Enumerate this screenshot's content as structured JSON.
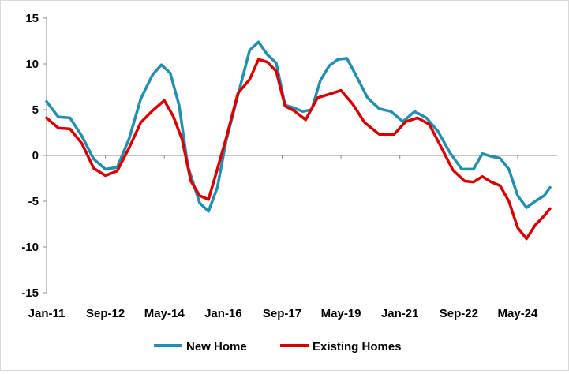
{
  "chart_data": {
    "type": "line",
    "title": "",
    "xlabel": "",
    "ylabel": "",
    "ylim": [
      -15,
      15
    ],
    "yticks": [
      15,
      10,
      5,
      0,
      -5,
      -10,
      -15
    ],
    "xticks": [
      "Jan-11",
      "Sep-12",
      "May-14",
      "Jan-16",
      "Sep-17",
      "May-19",
      "Jan-21",
      "Sep-22",
      "May-24"
    ],
    "grid": false,
    "legend_position": "bottom",
    "series": [
      {
        "name": "New Home",
        "color": "#1f8fb3",
        "points": [
          [
            "Jan-11",
            5.9
          ],
          [
            "May-11",
            4.2
          ],
          [
            "Sep-11",
            4.1
          ],
          [
            "Jan-12",
            2.1
          ],
          [
            "May-12",
            -0.4
          ],
          [
            "Sep-12",
            -1.5
          ],
          [
            "Jan-13",
            -1.3
          ],
          [
            "May-13",
            1.8
          ],
          [
            "Sep-13",
            6.2
          ],
          [
            "Jan-14",
            8.8
          ],
          [
            "Apr-14",
            9.9
          ],
          [
            "Jul-14",
            9.0
          ],
          [
            "Oct-14",
            5.5
          ],
          [
            "Jan-15",
            -1.2
          ],
          [
            "May-15",
            -5.2
          ],
          [
            "Aug-15",
            -6.1
          ],
          [
            "Nov-15",
            -3.5
          ],
          [
            "Feb-16",
            1.6
          ],
          [
            "Jun-16",
            6.6
          ],
          [
            "Oct-16",
            11.5
          ],
          [
            "Jan-17",
            12.4
          ],
          [
            "Apr-17",
            11.0
          ],
          [
            "Jul-17",
            10.1
          ],
          [
            "Oct-17",
            5.5
          ],
          [
            "Jan-18",
            5.2
          ],
          [
            "Apr-18",
            4.8
          ],
          [
            "Jul-18",
            5.0
          ],
          [
            "Oct-18",
            8.2
          ],
          [
            "Jan-19",
            9.8
          ],
          [
            "Apr-19",
            10.5
          ],
          [
            "Jul-19",
            10.6
          ],
          [
            "Oct-19",
            8.8
          ],
          [
            "Feb-20",
            6.3
          ],
          [
            "Jun-20",
            5.1
          ],
          [
            "Oct-20",
            4.8
          ],
          [
            "Feb-21",
            3.7
          ],
          [
            "Jun-21",
            4.8
          ],
          [
            "Oct-21",
            4.1
          ],
          [
            "Feb-22",
            2.6
          ],
          [
            "Jun-22",
            0.3
          ],
          [
            "Oct-22",
            -1.5
          ],
          [
            "Feb-23",
            -1.5
          ],
          [
            "May-23",
            0.2
          ],
          [
            "Aug-23",
            -0.1
          ],
          [
            "Nov-23",
            -0.3
          ],
          [
            "Feb-24",
            -1.5
          ],
          [
            "May-24",
            -4.4
          ],
          [
            "Aug-24",
            -5.7
          ],
          [
            "Nov-24",
            -5.0
          ],
          [
            "Feb-25",
            -4.4
          ],
          [
            "Apr-25",
            -3.5
          ]
        ]
      },
      {
        "name": "Existing Homes",
        "color": "#e00000",
        "points": [
          [
            "Jan-11",
            4.1
          ],
          [
            "May-11",
            3.0
          ],
          [
            "Sep-11",
            2.9
          ],
          [
            "Jan-12",
            1.3
          ],
          [
            "May-12",
            -1.4
          ],
          [
            "Sep-12",
            -2.2
          ],
          [
            "Jan-13",
            -1.7
          ],
          [
            "May-13",
            0.8
          ],
          [
            "Sep-13",
            3.6
          ],
          [
            "Jan-14",
            4.9
          ],
          [
            "May-14",
            6.0
          ],
          [
            "Aug-14",
            4.3
          ],
          [
            "Nov-14",
            1.8
          ],
          [
            "Feb-15",
            -2.8
          ],
          [
            "May-15",
            -4.4
          ],
          [
            "Aug-15",
            -4.8
          ],
          [
            "Nov-15",
            -1.5
          ],
          [
            "Feb-16",
            1.9
          ],
          [
            "Jun-16",
            6.8
          ],
          [
            "Oct-16",
            8.3
          ],
          [
            "Jan-17",
            10.5
          ],
          [
            "Apr-17",
            10.2
          ],
          [
            "Jul-17",
            9.2
          ],
          [
            "Oct-17",
            5.4
          ],
          [
            "Jan-18",
            4.9
          ],
          [
            "May-18",
            3.9
          ],
          [
            "Sep-18",
            6.3
          ],
          [
            "Jan-19",
            6.7
          ],
          [
            "May-19",
            7.1
          ],
          [
            "Sep-19",
            5.6
          ],
          [
            "Jan-20",
            3.6
          ],
          [
            "Jun-20",
            2.3
          ],
          [
            "Nov-20",
            2.3
          ],
          [
            "Mar-21",
            3.7
          ],
          [
            "Jul-21",
            4.1
          ],
          [
            "Nov-21",
            3.4
          ],
          [
            "Mar-22",
            0.9
          ],
          [
            "Jul-22",
            -1.6
          ],
          [
            "Nov-22",
            -2.8
          ],
          [
            "Feb-23",
            -2.9
          ],
          [
            "May-23",
            -2.3
          ],
          [
            "Aug-23",
            -2.9
          ],
          [
            "Nov-23",
            -3.3
          ],
          [
            "Feb-24",
            -5.0
          ],
          [
            "May-24",
            -7.9
          ],
          [
            "Aug-24",
            -9.1
          ],
          [
            "Nov-24",
            -7.6
          ],
          [
            "Feb-25",
            -6.6
          ],
          [
            "Apr-25",
            -5.8
          ]
        ]
      }
    ]
  }
}
